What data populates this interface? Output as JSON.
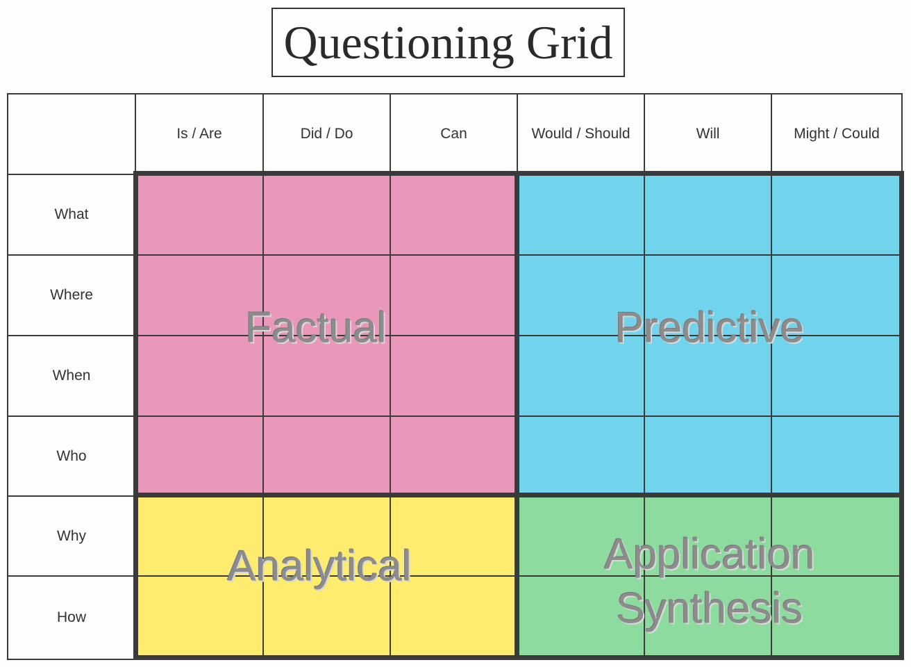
{
  "title": "Questioning Grid",
  "columns": [
    "Is / Are",
    "Did / Do",
    "Can",
    "Would / Should",
    "Will",
    "Might / Could"
  ],
  "rows": [
    "What",
    "Where",
    "When",
    "Who",
    "Why",
    "How"
  ],
  "quadrants": {
    "factual": {
      "label": "Factual",
      "color": "#e997bb"
    },
    "predictive": {
      "label": "Predictive",
      "color": "#72d3ec"
    },
    "analytical": {
      "label": "Analytical",
      "color": "#fdec6d"
    },
    "application": {
      "label": "Application",
      "label2": "Synthesis",
      "color": "#8edb9f"
    }
  }
}
